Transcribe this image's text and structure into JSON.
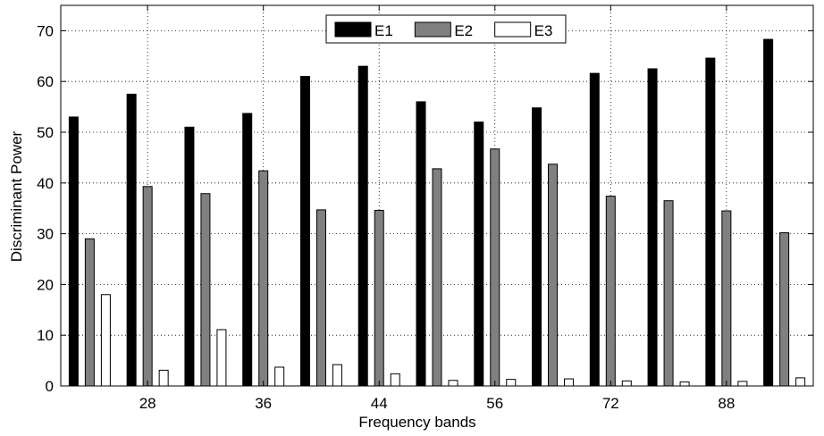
{
  "chart_data": {
    "type": "bar",
    "title": "",
    "xlabel": "Frequency bands",
    "ylabel": "Discriminant Power",
    "ylim": [
      0,
      75
    ],
    "yticks": [
      0,
      10,
      20,
      30,
      40,
      50,
      60,
      70
    ],
    "group_count": 13,
    "xtick_labels": [
      "28",
      "36",
      "44",
      "56",
      "72",
      "88"
    ],
    "xtick_groups": [
      1.5,
      3.5,
      5.5,
      7.5,
      9.5,
      11.5
    ],
    "grid": true,
    "legend_position": "top-center",
    "series": [
      {
        "name": "E1",
        "color": "#000000",
        "values": [
          53.0,
          57.5,
          51.0,
          53.7,
          61.0,
          63.0,
          56.0,
          52.0,
          54.8,
          61.6,
          62.5,
          64.6,
          68.3
        ]
      },
      {
        "name": "E2",
        "color": "#808080",
        "values": [
          29.0,
          39.3,
          37.9,
          42.4,
          34.7,
          34.6,
          42.8,
          46.7,
          43.7,
          37.4,
          36.5,
          34.5,
          30.2
        ]
      },
      {
        "name": "E3",
        "color": "#ffffff",
        "values": [
          18.0,
          3.1,
          11.1,
          3.7,
          4.2,
          2.4,
          1.1,
          1.3,
          1.4,
          1.0,
          0.8,
          0.9,
          1.6
        ]
      }
    ]
  }
}
